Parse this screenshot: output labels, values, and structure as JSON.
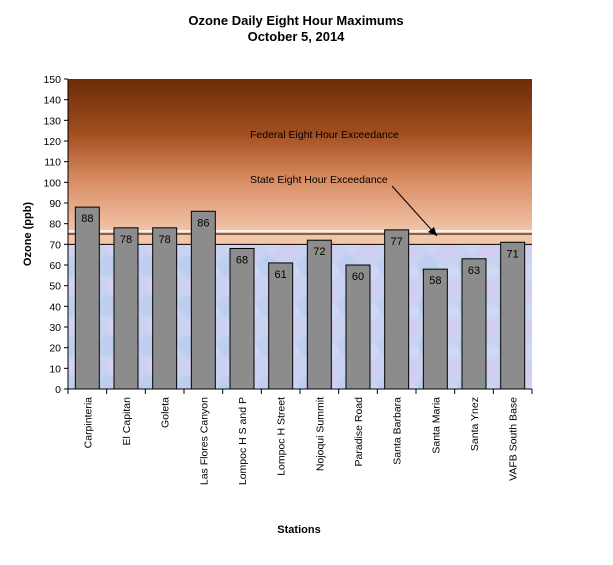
{
  "chart_data": {
    "type": "bar",
    "title": "Ozone Daily Eight Hour Maximums",
    "subtitle": "October 5, 2014",
    "xlabel": "Stations",
    "ylabel": "Ozone (ppb)",
    "ylim": [
      0,
      150
    ],
    "yticks": [
      0,
      10,
      20,
      30,
      40,
      50,
      60,
      70,
      80,
      90,
      100,
      110,
      120,
      130,
      140,
      150
    ],
    "categories": [
      "Carpinteria",
      "El Capitan",
      "Goleta",
      "Las Flores Canyon",
      "Lompoc H S and P",
      "Lompoc H Street",
      "Nojoqui Summit",
      "Paradise Road",
      "Santa Barbara",
      "Santa Maria",
      "Santa Ynez",
      "VAFB South Base"
    ],
    "values": [
      88,
      78,
      78,
      86,
      68,
      61,
      72,
      60,
      77,
      58,
      63,
      71
    ],
    "data_labels": [
      "88",
      "78",
      "78",
      "86",
      "68",
      "61",
      "72",
      "60",
      "77",
      "58",
      "63",
      "71"
    ],
    "reference_lines": [
      {
        "label": "Federal Eight Hour Exceedance",
        "value": 75
      },
      {
        "label": "State Eight Hour Exceedance",
        "value": 70
      }
    ],
    "grid": false,
    "legend": "none",
    "colors": {
      "bar": "#8c8c8c",
      "bar_border": "#000000",
      "exceedance_band": "#f3c6a5",
      "upper_gradient_top": "#6b2c08",
      "upper_gradient_bottom": "#f0b89a",
      "lower_background": "#c7d2f2"
    }
  }
}
